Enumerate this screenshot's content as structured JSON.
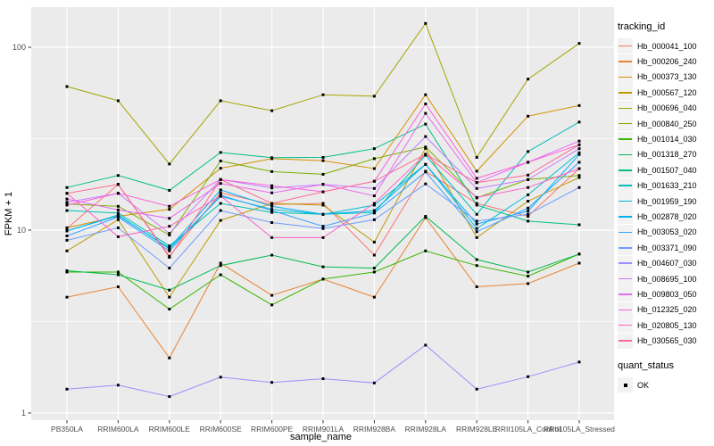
{
  "chart_data": {
    "type": "line",
    "title": "",
    "xlabel": "sample_name",
    "ylabel": "FPKM + 1",
    "y_scale": "log10",
    "y_ticks": [
      1,
      10,
      100
    ],
    "y_tick_labels": [
      "1",
      "10",
      "100"
    ],
    "y_minor_gridlines": [
      3.162,
      31.62
    ],
    "ylim": [
      0.93,
      166
    ],
    "grid": "on",
    "panel_bg": "#EBEBEB",
    "gridline_color": "#FFFFFF",
    "axis_text_color": "#4D4D4D",
    "point_marker": {
      "shape": "square",
      "color": "#000000",
      "size": 3
    },
    "categories": [
      "PB350LA",
      "RRIM600LA",
      "RRIM600LE",
      "RRIM600SE",
      "RRIM600PE",
      "RRIM901LA",
      "RRIM928BA",
      "RRIM928LA",
      "RRIM928LE",
      "RRII105LA_Control",
      "RRII105LA_Stressed"
    ],
    "legend": {
      "position": "right",
      "color_title": "tracking_id",
      "shape_title": "quant_status",
      "shape_items": [
        {
          "label": "OK",
          "marker": "black-square"
        }
      ]
    },
    "series": [
      {
        "name": "Hb_000041_100",
        "color": "#F8766D",
        "values": [
          10.2,
          17.8,
          7.2,
          16.0,
          13.8,
          14.0,
          7.3,
          21.0,
          14.0,
          11.9,
          21.7
        ]
      },
      {
        "name": "Hb_000206_240",
        "color": "#EA8331",
        "values": [
          4.3,
          4.9,
          2.0,
          6.6,
          4.4,
          5.4,
          4.3,
          11.7,
          4.9,
          5.1,
          6.6
        ]
      },
      {
        "name": "Hb_000373_130",
        "color": "#D89000",
        "values": [
          10.3,
          11.9,
          13.0,
          21.8,
          24.6,
          24.0,
          21.7,
          55.0,
          21.0,
          42.0,
          48.0
        ]
      },
      {
        "name": "Hb_000567_120",
        "color": "#C09B00",
        "values": [
          7.7,
          11.4,
          4.3,
          11.3,
          14.0,
          13.7,
          8.6,
          28.0,
          9.1,
          14.4,
          19.4
        ]
      },
      {
        "name": "Hb_000696_040",
        "color": "#A3A500",
        "values": [
          61,
          51,
          23,
          51,
          45,
          55,
          54,
          135,
          25,
          67,
          105
        ]
      },
      {
        "name": "Hb_000840_250",
        "color": "#7CAE00",
        "values": [
          13.9,
          13.5,
          9.4,
          23.9,
          20.9,
          20.2,
          24.6,
          28.5,
          15.0,
          18.9,
          19.9
        ]
      },
      {
        "name": "Hb_001014_030",
        "color": "#39B600",
        "values": [
          5.9,
          5.9,
          3.7,
          5.7,
          3.9,
          5.4,
          5.9,
          7.7,
          6.4,
          5.6,
          7.4
        ]
      },
      {
        "name": "Hb_001318_270",
        "color": "#00BB4E",
        "values": [
          6.0,
          5.7,
          4.7,
          6.4,
          7.3,
          6.3,
          6.2,
          11.9,
          6.9,
          5.9,
          7.4
        ]
      },
      {
        "name": "Hb_001507_040",
        "color": "#00C087",
        "values": [
          17.1,
          19.9,
          16.5,
          26.6,
          24.9,
          25.0,
          27.9,
          38.0,
          13.7,
          11.2,
          10.7
        ]
      },
      {
        "name": "Hb_001633_210",
        "color": "#00C0B8",
        "values": [
          12.8,
          12.4,
          8.2,
          14.0,
          12.5,
          12.2,
          12.5,
          25.7,
          12.2,
          26.9,
          39.0
        ]
      },
      {
        "name": "Hb_001959_190",
        "color": "#00BCD8",
        "values": [
          9.9,
          12.1,
          7.9,
          15.3,
          13.0,
          12.2,
          13.7,
          22.9,
          10.2,
          15.6,
          26.5
        ]
      },
      {
        "name": "Hb_002878_020",
        "color": "#00B0F6",
        "values": [
          9.9,
          12.0,
          8.0,
          16.6,
          13.5,
          12.2,
          12.8,
          22.9,
          10.8,
          12.7,
          25.9
        ]
      },
      {
        "name": "Hb_003053_020",
        "color": "#35A2FF",
        "values": [
          9.3,
          11.8,
          7.7,
          15.5,
          12.8,
          10.5,
          12.4,
          20.8,
          9.8,
          13.2,
          23.5
        ]
      },
      {
        "name": "Hb_003371_090",
        "color": "#6E9AFF",
        "values": [
          8.8,
          10.3,
          6.2,
          12.8,
          11.0,
          10.2,
          11.4,
          17.9,
          11.2,
          12.2,
          17.1
        ]
      },
      {
        "name": "Hb_004607_030",
        "color": "#9590FF",
        "values": [
          1.35,
          1.42,
          1.23,
          1.57,
          1.47,
          1.54,
          1.46,
          2.35,
          1.35,
          1.58,
          1.9
        ]
      },
      {
        "name": "Hb_008695_100",
        "color": "#C77CFF",
        "values": [
          14.2,
          15.9,
          9.6,
          18.9,
          17.0,
          17.8,
          16.9,
          32.5,
          16.9,
          18.9,
          27.9
        ]
      },
      {
        "name": "Hb_009803_050",
        "color": "#E76BF3",
        "values": [
          14.8,
          12.9,
          11.6,
          18.0,
          16.0,
          17.8,
          15.4,
          43.5,
          18.2,
          23.5,
          30.7
        ]
      },
      {
        "name": "Hb_012325_020",
        "color": "#FA62DB",
        "values": [
          13.7,
          15.9,
          13.5,
          18.9,
          17.5,
          16.2,
          18.5,
          49.0,
          19.2,
          23.5,
          29.3
        ]
      },
      {
        "name": "Hb_020805_130",
        "color": "#FF61C7",
        "values": [
          15.9,
          9.2,
          10.5,
          15.4,
          9.1,
          9.1,
          14.0,
          26.0,
          15.1,
          17.1,
          21.7
        ]
      },
      {
        "name": "Hb_030565_030",
        "color": "#FF6C91",
        "values": [
          15.9,
          17.8,
          7.1,
          18.9,
          14.0,
          16.2,
          18.5,
          26.0,
          18.2,
          20.0,
          29.3
        ]
      }
    ]
  }
}
